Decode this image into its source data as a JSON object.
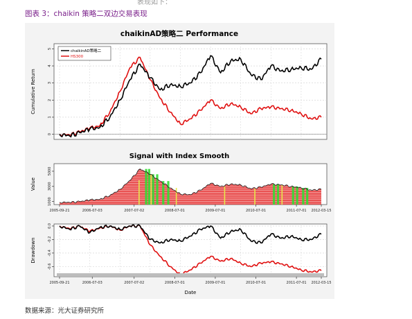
{
  "top_text": "表现如下：",
  "figure_title": "图表 3：chaikin 策略二双边交易表现",
  "source_text": "数据来源：光大证券研究所",
  "colors": {
    "strategy": "#000000",
    "index": "#e01010",
    "green": "#33dd33",
    "yellow": "#e8e84a",
    "area_fill": "#e84a4a"
  },
  "chart_data": [
    {
      "type": "line",
      "title": "chaikinAD策略二 Performance",
      "ylabel": "Cumulative Return",
      "yticks": [
        0,
        1,
        2,
        3,
        4,
        5
      ],
      "ylim": [
        -0.3,
        5.3
      ],
      "grid": true,
      "legend": {
        "position": "top-left",
        "entries": [
          "chaikinAD策略二",
          "HS300"
        ]
      },
      "x": [
        "2005-09",
        "2005-12",
        "2006-03",
        "2006-06",
        "2006-09",
        "2006-12",
        "2007-03",
        "2007-06",
        "2007-09",
        "2007-12",
        "2008-03",
        "2008-06",
        "2008-09",
        "2008-12",
        "2009-03",
        "2009-06",
        "2009-09",
        "2009-12",
        "2010-03",
        "2010-06",
        "2010-09",
        "2010-12",
        "2011-03",
        "2011-06",
        "2011-09",
        "2011-12",
        "2012-03"
      ],
      "series": [
        {
          "name": "chaikinAD策略二",
          "values": [
            0.0,
            -0.1,
            0.1,
            0.3,
            0.4,
            1.0,
            2.0,
            3.2,
            4.1,
            3.3,
            2.6,
            2.9,
            2.8,
            3.0,
            3.6,
            4.6,
            3.6,
            4.3,
            4.4,
            3.5,
            3.2,
            4.0,
            3.7,
            3.8,
            3.9,
            3.8,
            4.4
          ]
        },
        {
          "name": "HS300",
          "values": [
            0.0,
            -0.05,
            0.15,
            0.35,
            0.5,
            1.3,
            2.5,
            3.9,
            4.5,
            3.2,
            2.1,
            1.3,
            0.6,
            0.9,
            1.4,
            2.0,
            1.5,
            1.8,
            1.6,
            1.2,
            1.5,
            1.6,
            1.5,
            1.4,
            1.2,
            0.9,
            1.0
          ]
        }
      ]
    },
    {
      "type": "area",
      "title": "Signal with Index Smooth",
      "ylabel": "Value",
      "yticks": [
        1000,
        3000,
        5000
      ],
      "ylim": [
        600,
        6000
      ],
      "xticks": [
        "2005-09-21",
        "2006-07-03",
        "2007-07-02",
        "2008-07-01",
        "2009-07-01",
        "2010-07-01",
        "2011-07-01",
        "2012-03-15"
      ],
      "x": [
        "2005-09",
        "2005-12",
        "2006-03",
        "2006-06",
        "2006-09",
        "2006-12",
        "2007-03",
        "2007-06",
        "2007-09",
        "2007-12",
        "2008-03",
        "2008-06",
        "2008-09",
        "2008-12",
        "2009-03",
        "2009-06",
        "2009-09",
        "2009-12",
        "2010-03",
        "2010-06",
        "2010-09",
        "2010-12",
        "2011-03",
        "2011-06",
        "2011-09",
        "2011-12",
        "2012-03"
      ],
      "values": [
        900,
        880,
        1000,
        1200,
        1300,
        1800,
        2600,
        3800,
        5300,
        4600,
        3700,
        2800,
        2000,
        1900,
        2500,
        3400,
        3000,
        3300,
        3200,
        2700,
        2900,
        3300,
        3200,
        3000,
        2800,
        2500,
        2600
      ]
    },
    {
      "type": "line",
      "title": "",
      "ylabel": "Drawdown",
      "xlabel": "Date",
      "yticks": [
        0.0,
        -0.2,
        -0.4,
        -0.6
      ],
      "ylim": [
        -0.75,
        0.03
      ],
      "grid": true,
      "xticks": [
        "2005-09-21",
        "2006-07-03",
        "2007-07-02",
        "2008-07-01",
        "2009-07-01",
        "2010-07-01",
        "2011-07-01",
        "2012-03-15"
      ],
      "x": [
        "2005-09",
        "2005-12",
        "2006-03",
        "2006-06",
        "2006-09",
        "2006-12",
        "2007-03",
        "2007-06",
        "2007-09",
        "2007-12",
        "2008-03",
        "2008-06",
        "2008-09",
        "2008-12",
        "2009-03",
        "2009-06",
        "2009-09",
        "2009-12",
        "2010-03",
        "2010-06",
        "2010-09",
        "2010-12",
        "2011-03",
        "2011-06",
        "2011-09",
        "2011-12",
        "2012-03"
      ],
      "series": [
        {
          "name": "chaikinAD策略二",
          "values": [
            0.0,
            -0.05,
            0.0,
            -0.1,
            -0.02,
            0.0,
            -0.05,
            0.0,
            0.0,
            -0.2,
            -0.25,
            -0.2,
            -0.22,
            -0.15,
            -0.05,
            0.0,
            -0.18,
            -0.08,
            -0.05,
            -0.22,
            -0.25,
            -0.12,
            -0.18,
            -0.15,
            -0.2,
            -0.2,
            -0.12
          ]
        },
        {
          "name": "HS300",
          "values": [
            0.0,
            -0.04,
            0.0,
            -0.08,
            -0.03,
            0.0,
            -0.06,
            0.0,
            0.0,
            -0.28,
            -0.45,
            -0.6,
            -0.72,
            -0.65,
            -0.55,
            -0.45,
            -0.52,
            -0.48,
            -0.55,
            -0.6,
            -0.55,
            -0.53,
            -0.56,
            -0.6,
            -0.65,
            -0.68,
            -0.66
          ]
        }
      ]
    }
  ]
}
